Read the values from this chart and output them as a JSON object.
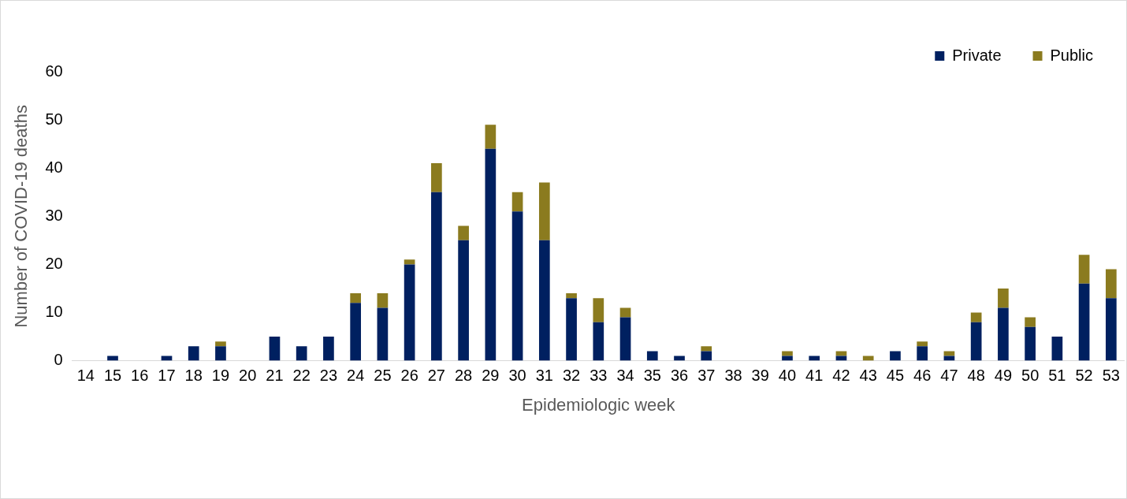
{
  "chart_data": {
    "type": "bar",
    "xlabel": "Epidemiologic week",
    "ylabel": "Number of COVID-19 deaths",
    "categories": [
      "14",
      "15",
      "16",
      "17",
      "18",
      "19",
      "20",
      "21",
      "22",
      "23",
      "24",
      "25",
      "26",
      "27",
      "28",
      "29",
      "30",
      "31",
      "32",
      "33",
      "34",
      "35",
      "36",
      "37",
      "38",
      "39",
      "40",
      "41",
      "42",
      "43",
      "45",
      "46",
      "47",
      "48",
      "49",
      "50",
      "51",
      "52",
      "53"
    ],
    "series": [
      {
        "name": "Private",
        "color": "#002060",
        "values": [
          0,
          1,
          0,
          1,
          3,
          3,
          0,
          5,
          3,
          5,
          12,
          11,
          20,
          35,
          25,
          44,
          31,
          25,
          13,
          8,
          9,
          2,
          1,
          2,
          0,
          0,
          1,
          1,
          1,
          0,
          2,
          3,
          1,
          8,
          11,
          7,
          5,
          16,
          13
        ]
      },
      {
        "name": "Public",
        "color": "#8b7b1f",
        "values": [
          0,
          0,
          0,
          0,
          0,
          1,
          0,
          0,
          0,
          0,
          2,
          3,
          1,
          6,
          3,
          5,
          4,
          12,
          1,
          5,
          2,
          0,
          0,
          1,
          0,
          0,
          1,
          0,
          1,
          1,
          0,
          1,
          1,
          2,
          4,
          2,
          0,
          6,
          6
        ]
      }
    ],
    "stacked": true,
    "ylim": [
      0,
      60
    ],
    "yticks": [
      0,
      10,
      20,
      30,
      40,
      50,
      60
    ],
    "grid": false,
    "legend": "top right"
  }
}
